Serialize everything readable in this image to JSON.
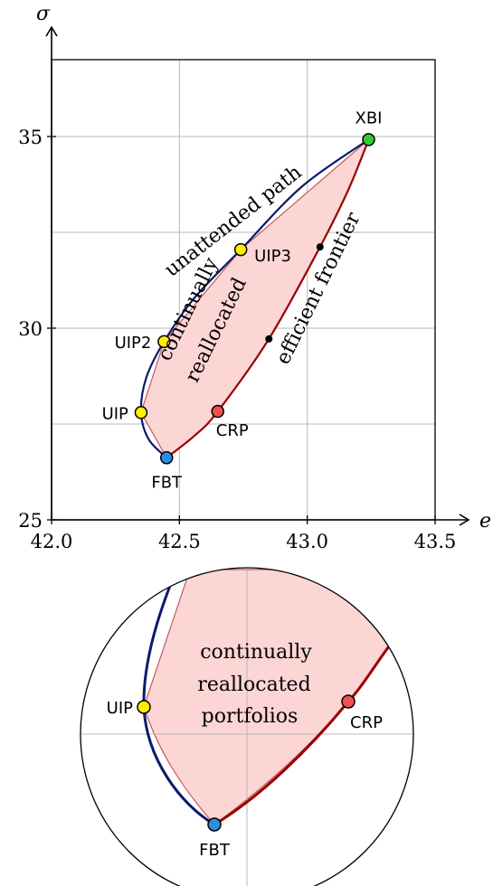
{
  "chart_data": [
    {
      "type": "line",
      "title": "",
      "xlabel": "e",
      "ylabel": "σ",
      "xlim": [
        42.0,
        43.5
      ],
      "ylim": [
        25,
        37
      ],
      "x_ticks": [
        42.0,
        42.5,
        43.0,
        43.5
      ],
      "x_tick_labels": [
        "42.0",
        "42.5",
        "43.0",
        "43.5"
      ],
      "y_ticks": [
        25,
        30,
        35
      ],
      "y_tick_labels": [
        "25",
        "30",
        "35"
      ],
      "grid": true,
      "points": [
        {
          "name": "XBI",
          "x": 43.24,
          "y": 34.92,
          "color": "#33cc33"
        },
        {
          "name": "UIP3",
          "x": 42.74,
          "y": 32.05,
          "color": "#ffee00"
        },
        {
          "name": "UIP2",
          "x": 42.44,
          "y": 29.65,
          "color": "#ffee00"
        },
        {
          "name": "UIP",
          "x": 42.35,
          "y": 27.8,
          "color": "#ffee00"
        },
        {
          "name": "FBT",
          "x": 42.45,
          "y": 26.62,
          "color": "#2a8fe0"
        },
        {
          "name": "CRP",
          "x": 42.65,
          "y": 27.83,
          "color": "#f05050"
        }
      ],
      "frontier_markers": [
        {
          "x": 42.85,
          "y": 29.72
        },
        {
          "x": 43.05,
          "y": 32.12
        }
      ],
      "series": [
        {
          "name": "unattended path",
          "color": "#0a1a6e",
          "points": [
            [
              43.24,
              34.92
            ],
            [
              42.98,
              33.7
            ],
            [
              42.74,
              32.05
            ],
            [
              42.56,
              30.8
            ],
            [
              42.44,
              29.65
            ],
            [
              42.37,
              28.7
            ],
            [
              42.35,
              27.8
            ],
            [
              42.38,
              27.1
            ],
            [
              42.45,
              26.62
            ]
          ]
        },
        {
          "name": "efficient frontier",
          "color": "#9a0000",
          "points": [
            [
              42.45,
              26.62
            ],
            [
              42.56,
              27.2
            ],
            [
              42.65,
              27.83
            ],
            [
              42.85,
              29.72
            ],
            [
              43.05,
              32.12
            ],
            [
              43.16,
              33.6
            ],
            [
              43.24,
              34.92
            ]
          ]
        },
        {
          "name": "continually reallocated",
          "color": "#f7a8a8",
          "points": [
            [
              43.24,
              34.92
            ],
            [
              42.74,
              32.05
            ],
            [
              42.44,
              29.65
            ],
            [
              42.35,
              27.8
            ],
            [
              42.45,
              26.62
            ]
          ]
        }
      ],
      "annotations": {
        "unattended": "unattended path",
        "efficient": "efficient frontier",
        "region_line1": "continually",
        "region_line2": "reallocated"
      }
    },
    {
      "type": "line",
      "title": "",
      "inset": "magnified view near FBT",
      "points": [
        {
          "name": "UIP",
          "color": "#ffee00"
        },
        {
          "name": "FBT",
          "color": "#2a8fe0"
        },
        {
          "name": "CRP",
          "color": "#f05050"
        }
      ],
      "annotations": {
        "region_line1": "continually",
        "region_line2": "reallocated",
        "region_line3": "portfolios"
      }
    }
  ]
}
